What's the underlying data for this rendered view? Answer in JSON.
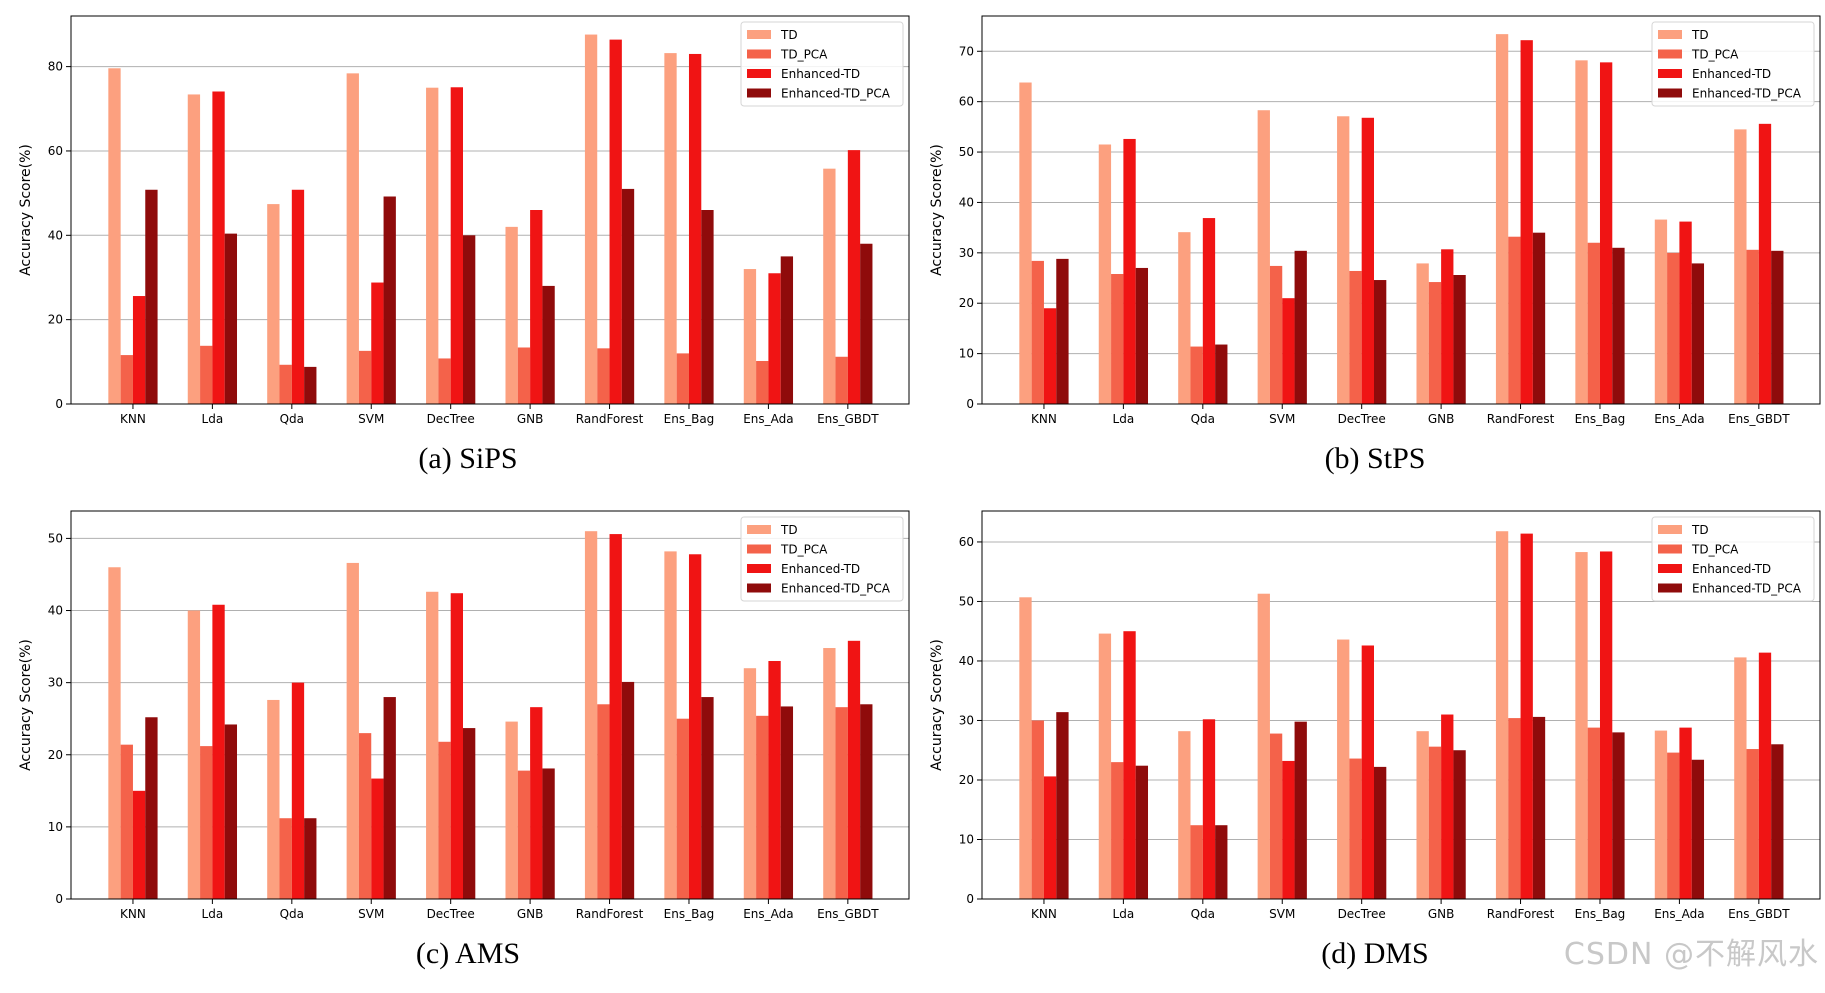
{
  "colors": {
    "TD": "#fca07f",
    "TD_PCA": "#f4624a",
    "Enhanced-TD": "#f01414",
    "Enhanced-TD_PCA": "#8f0b0b"
  },
  "watermark": "CSDN @不解风水",
  "chart_data": [
    {
      "type": "bar",
      "caption": "(a) SiPS",
      "ylabel": "Accuracy Score(%)",
      "ylim": [
        0,
        92
      ],
      "yticks": [
        0,
        20,
        40,
        60,
        80
      ],
      "grid": "y",
      "legend_position": "top-right",
      "categories": [
        "KNN",
        "Lda",
        "Qda",
        "SVM",
        "DecTree",
        "GNB",
        "RandForest",
        "Ens_Bag",
        "Ens_Ada",
        "Ens_GBDT"
      ],
      "series": [
        {
          "name": "TD",
          "values": [
            79.6,
            73.4,
            47.4,
            78.4,
            75.0,
            42.0,
            87.6,
            83.2,
            32.0,
            55.8
          ]
        },
        {
          "name": "TD_PCA",
          "values": [
            11.6,
            13.8,
            9.3,
            12.6,
            10.8,
            13.4,
            13.2,
            12.0,
            10.2,
            11.2
          ]
        },
        {
          "name": "Enhanced-TD",
          "values": [
            25.6,
            74.1,
            50.8,
            28.8,
            75.1,
            46.0,
            86.4,
            83.0,
            31.0,
            60.2
          ]
        },
        {
          "name": "Enhanced-TD_PCA",
          "values": [
            50.8,
            40.4,
            8.8,
            49.2,
            40.0,
            28.0,
            51.0,
            46.0,
            35.0,
            38.0
          ]
        }
      ]
    },
    {
      "type": "bar",
      "caption": "(b) StPS",
      "ylabel": "Accuracy Score(%)",
      "ylim": [
        0,
        77
      ],
      "yticks": [
        0,
        10,
        20,
        30,
        40,
        50,
        60,
        70
      ],
      "grid": "y",
      "legend_position": "top-right",
      "categories": [
        "KNN",
        "Lda",
        "Qda",
        "SVM",
        "DecTree",
        "GNB",
        "RandForest",
        "Ens_Bag",
        "Ens_Ada",
        "Ens_GBDT"
      ],
      "series": [
        {
          "name": "TD",
          "values": [
            63.8,
            51.5,
            34.1,
            58.3,
            57.1,
            27.9,
            73.4,
            68.2,
            36.6,
            54.5
          ]
        },
        {
          "name": "TD_PCA",
          "values": [
            28.4,
            25.8,
            11.4,
            27.4,
            26.4,
            24.2,
            33.2,
            32.0,
            30.0,
            30.6
          ]
        },
        {
          "name": "Enhanced-TD",
          "values": [
            19.0,
            52.6,
            36.9,
            21.0,
            56.8,
            30.7,
            72.2,
            67.8,
            36.2,
            55.6
          ]
        },
        {
          "name": "Enhanced-TD_PCA",
          "values": [
            28.8,
            27.0,
            11.8,
            30.4,
            24.6,
            25.6,
            34.0,
            31.0,
            27.9,
            30.4
          ]
        }
      ]
    },
    {
      "type": "bar",
      "caption": "(c) AMS",
      "ylabel": "Accuracy Score(%)",
      "ylim": [
        0,
        53.8
      ],
      "yticks": [
        0,
        10,
        20,
        30,
        40,
        50
      ],
      "grid": "y",
      "legend_position": "top-right",
      "categories": [
        "KNN",
        "Lda",
        "Qda",
        "SVM",
        "DecTree",
        "GNB",
        "RandForest",
        "Ens_Bag",
        "Ens_Ada",
        "Ens_GBDT"
      ],
      "series": [
        {
          "name": "TD",
          "values": [
            46.0,
            40.0,
            27.6,
            46.6,
            42.6,
            24.6,
            51.0,
            48.2,
            32.0,
            34.8
          ]
        },
        {
          "name": "TD_PCA",
          "values": [
            21.4,
            21.2,
            11.2,
            23.0,
            21.8,
            17.8,
            27.0,
            25.0,
            25.4,
            26.6
          ]
        },
        {
          "name": "Enhanced-TD",
          "values": [
            15.0,
            40.8,
            30.0,
            16.7,
            42.4,
            26.6,
            50.6,
            47.8,
            33.0,
            35.8
          ]
        },
        {
          "name": "Enhanced-TD_PCA",
          "values": [
            25.2,
            24.2,
            11.2,
            28.0,
            23.7,
            18.1,
            30.1,
            28.0,
            26.7,
            27.0
          ]
        }
      ]
    },
    {
      "type": "bar",
      "caption": "(d) DMS",
      "ylabel": "Accuracy Score(%)",
      "ylim": [
        0,
        65.2
      ],
      "yticks": [
        0,
        10,
        20,
        30,
        40,
        50,
        60
      ],
      "grid": "y",
      "legend_position": "top-right",
      "categories": [
        "KNN",
        "Lda",
        "Qda",
        "SVM",
        "DecTree",
        "GNB",
        "RandForest",
        "Ens_Bag",
        "Ens_Ada",
        "Ens_GBDT"
      ],
      "series": [
        {
          "name": "TD",
          "values": [
            50.7,
            44.6,
            28.2,
            51.3,
            43.6,
            28.2,
            61.8,
            58.3,
            28.3,
            40.6
          ]
        },
        {
          "name": "TD_PCA",
          "values": [
            30.0,
            23.0,
            12.4,
            27.8,
            23.6,
            25.6,
            30.4,
            28.8,
            24.6,
            25.2
          ]
        },
        {
          "name": "Enhanced-TD",
          "values": [
            20.6,
            45.0,
            30.2,
            23.2,
            42.6,
            31.0,
            61.4,
            58.4,
            28.8,
            41.4
          ]
        },
        {
          "name": "Enhanced-TD_PCA",
          "values": [
            31.4,
            22.4,
            12.4,
            29.8,
            22.2,
            25.0,
            30.6,
            28.0,
            23.4,
            26.0
          ]
        }
      ]
    }
  ]
}
